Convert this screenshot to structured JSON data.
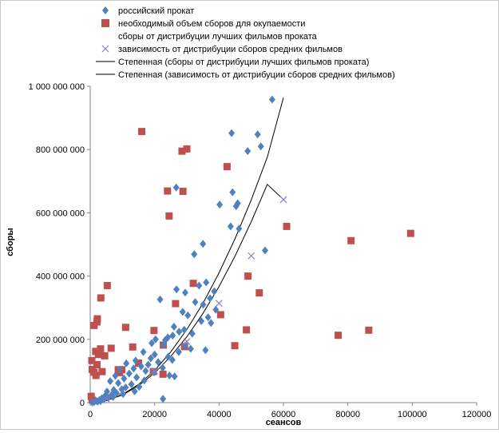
{
  "chart_data": {
    "type": "scatter",
    "title": "",
    "xlabel": "сеансов",
    "ylabel": "сборы",
    "xlim": [
      0,
      120000
    ],
    "ylim": [
      0,
      1000000000
    ],
    "x_ticks": [
      "0",
      "20000",
      "40000",
      "60000",
      "80000",
      "100000",
      "120000"
    ],
    "y_ticks": [
      "0",
      "200 000 000",
      "400 000 000",
      "600 000 000",
      "800 000 000",
      "1 000 000 000"
    ],
    "grid": false,
    "legend_position": "top",
    "colors": {
      "russian": "#4F81BD",
      "required": "#C0504D",
      "dependency": "#7F7FBF",
      "trend": "#000000"
    },
    "series": [
      {
        "name": "российский прокат",
        "marker": "diamond",
        "color": "#4F81BD",
        "points": [
          [
            56500,
            958000000
          ],
          [
            43900,
            852000000
          ],
          [
            52000,
            848000000
          ],
          [
            53000,
            810000000
          ],
          [
            48900,
            795000000
          ],
          [
            44200,
            665000000
          ],
          [
            45800,
            630000000
          ],
          [
            45300,
            621000000
          ],
          [
            40200,
            626000000
          ],
          [
            26700,
            680000000
          ],
          [
            43600,
            557000000
          ],
          [
            46200,
            550000000
          ],
          [
            54300,
            481000000
          ],
          [
            35000,
            502000000
          ],
          [
            32300,
            469000000
          ],
          [
            36000,
            380000000
          ],
          [
            33800,
            370000000
          ],
          [
            38500,
            352000000
          ],
          [
            26800,
            358000000
          ],
          [
            29500,
            348000000
          ],
          [
            37200,
            330000000
          ],
          [
            21700,
            326000000
          ],
          [
            32600,
            318000000
          ],
          [
            35100,
            310000000
          ],
          [
            39000,
            294000000
          ],
          [
            28700,
            287000000
          ],
          [
            30300,
            276000000
          ],
          [
            36600,
            270000000
          ],
          [
            34500,
            258000000
          ],
          [
            37500,
            252000000
          ],
          [
            26000,
            240000000
          ],
          [
            27600,
            224000000
          ],
          [
            29200,
            230000000
          ],
          [
            31700,
            218000000
          ],
          [
            25600,
            212000000
          ],
          [
            24100,
            206000000
          ],
          [
            23300,
            198000000
          ],
          [
            20300,
            200000000
          ],
          [
            22800,
            183000000
          ],
          [
            19100,
            188000000
          ],
          [
            29400,
            180000000
          ],
          [
            31200,
            170000000
          ],
          [
            35800,
            166000000
          ],
          [
            27500,
            160000000
          ],
          [
            16500,
            160000000
          ],
          [
            20000,
            152000000
          ],
          [
            24200,
            145000000
          ],
          [
            18800,
            140000000
          ],
          [
            25500,
            135000000
          ],
          [
            14100,
            133000000
          ],
          [
            21100,
            128000000
          ],
          [
            11200,
            124000000
          ],
          [
            18000,
            120000000
          ],
          [
            15800,
            115000000
          ],
          [
            22500,
            110000000
          ],
          [
            13500,
            108000000
          ],
          [
            9200,
            105000000
          ],
          [
            17200,
            100000000
          ],
          [
            19800,
            96000000
          ],
          [
            24600,
            86000000
          ],
          [
            26200,
            83000000
          ],
          [
            12100,
            92000000
          ],
          [
            7800,
            85000000
          ],
          [
            14400,
            80000000
          ],
          [
            10500,
            76000000
          ],
          [
            16800,
            70000000
          ],
          [
            6200,
            68000000
          ],
          [
            8700,
            62000000
          ],
          [
            12800,
            58000000
          ],
          [
            15200,
            50000000
          ],
          [
            11000,
            48000000
          ],
          [
            9800,
            42000000
          ],
          [
            7300,
            40000000
          ],
          [
            13800,
            36000000
          ],
          [
            5200,
            35000000
          ],
          [
            8200,
            30000000
          ],
          [
            10200,
            27000000
          ],
          [
            6600,
            24000000
          ],
          [
            4500,
            20000000
          ],
          [
            7100,
            18000000
          ],
          [
            5600,
            15000000
          ],
          [
            3600,
            14000000
          ],
          [
            4200,
            10000000
          ],
          [
            2800,
            8000000
          ],
          [
            3200,
            5000000
          ],
          [
            1800,
            6000000
          ],
          [
            2300,
            3000000
          ],
          [
            1200,
            2000000
          ],
          [
            600,
            1000000
          ],
          [
            22600,
            12000000
          ]
        ]
      },
      {
        "name": "необходимый объем сборов для окупаемости сборы от дистрибуции лучших фильмов проката",
        "legend_lines": [
          "необходимый объем сборов для окупаемости",
          "сборы от дистрибуции лучших фильмов проката"
        ],
        "marker": "square",
        "color": "#C0504D",
        "points": [
          [
            16000,
            857000000
          ],
          [
            30000,
            802000000
          ],
          [
            28500,
            795000000
          ],
          [
            42500,
            746000000
          ],
          [
            24000,
            669000000
          ],
          [
            28800,
            668000000
          ],
          [
            24500,
            590000000
          ],
          [
            61000,
            557000000
          ],
          [
            81000,
            512000000
          ],
          [
            99500,
            535000000
          ],
          [
            5300,
            370000000
          ],
          [
            3300,
            331000000
          ],
          [
            32000,
            377000000
          ],
          [
            49000,
            400000000
          ],
          [
            52500,
            347000000
          ],
          [
            26500,
            313000000
          ],
          [
            40500,
            278000000
          ],
          [
            2200,
            265000000
          ],
          [
            2100,
            255000000
          ],
          [
            1200,
            244000000
          ],
          [
            11000,
            238000000
          ],
          [
            19800,
            228000000
          ],
          [
            48500,
            230000000
          ],
          [
            86500,
            229000000
          ],
          [
            77000,
            213000000
          ],
          [
            22700,
            182000000
          ],
          [
            44900,
            180000000
          ],
          [
            6500,
            172000000
          ],
          [
            13200,
            176000000
          ],
          [
            29300,
            177000000
          ],
          [
            3200,
            170000000
          ],
          [
            1700,
            162000000
          ],
          [
            2500,
            152000000
          ],
          [
            4500,
            148000000
          ],
          [
            500,
            133000000
          ],
          [
            15000,
            125000000
          ],
          [
            2100,
            120000000
          ],
          [
            600,
            105000000
          ],
          [
            8700,
            104000000
          ],
          [
            9800,
            104000000
          ],
          [
            3700,
            98000000
          ],
          [
            1200,
            96000000
          ],
          [
            19600,
            98000000
          ],
          [
            9100,
            95000000
          ],
          [
            22600,
            90000000
          ],
          [
            1800,
            86000000
          ],
          [
            300,
            20000000
          ],
          [
            600,
            8000000
          ]
        ]
      },
      {
        "name": "зависимость от дистрибуции сборов средних фильмов",
        "marker": "x",
        "color": "#7F7FBF",
        "points": [
          [
            60000,
            642000000
          ],
          [
            50000,
            464000000
          ],
          [
            40000,
            314000000
          ],
          [
            30000,
            193000000
          ],
          [
            20000,
            100000000
          ],
          [
            10000,
            35000000
          ],
          [
            5000,
            12000000
          ]
        ]
      },
      {
        "name": "Степенная (сборы от дистрибуции  лучших фильмов проката)",
        "type": "line",
        "color": "#000000",
        "x": [
          1000,
          5000,
          10000,
          15000,
          20000,
          25000,
          30000,
          35000,
          40000,
          45000,
          50000,
          55000,
          60000
        ],
        "values": [
          260000,
          6400000,
          25600000,
          57700000,
          102000000,
          160000000,
          231000000,
          314000000,
          410000000,
          519000000,
          641000000,
          776000000,
          964000000
        ]
      },
      {
        "name": "Степенная (зависимость от дистрибуции  сборов средних фильмов)",
        "type": "line",
        "color": "#000000",
        "x": [
          2000,
          5000,
          10000,
          15000,
          20000,
          25000,
          30000,
          35000,
          40000,
          45000,
          50000,
          55000,
          60000
        ],
        "values": [
          1500000,
          6600000,
          24300000,
          53600000,
          94000000,
          146000000,
          208000000,
          282000000,
          367000000,
          464000000,
          572000000,
          690000000,
          642000000
        ]
      }
    ]
  }
}
